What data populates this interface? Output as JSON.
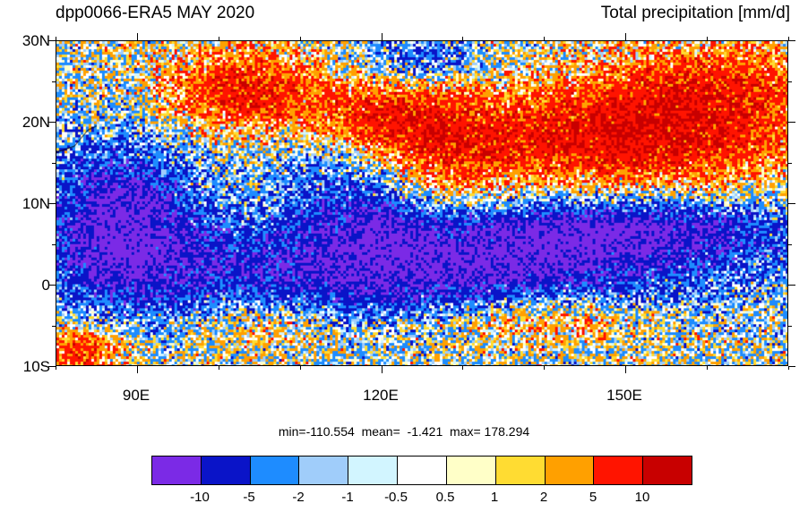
{
  "title": {
    "left": "dpp0066-ERA5 MAY 2020",
    "right": "Total precipitation [mm/d]"
  },
  "map": {
    "lat_labels": [
      "30N",
      "20N",
      "10N",
      "0",
      "10S"
    ],
    "lon_labels": [
      "90E",
      "120E",
      "150E"
    ],
    "lat_range": [
      -10,
      30
    ],
    "lon_range": [
      80,
      170
    ]
  },
  "stats": {
    "min": "-110.554",
    "mean": "-1.421",
    "max": "178.294",
    "text": "min=-110.554  mean=  -1.421  max= 178.294"
  },
  "colorbar": {
    "colors": [
      "#7b2ae6",
      "#0a14c8",
      "#1e8cff",
      "#a0cdfa",
      "#d2f5ff",
      "#ffffff",
      "#ffffc8",
      "#ffdc32",
      "#ffa000",
      "#ff1400",
      "#c80000"
    ],
    "labels": [
      "-10",
      "-5",
      "-2",
      "-1",
      "-0.5",
      "0.5",
      "1",
      "2",
      "5",
      "10"
    ]
  }
}
